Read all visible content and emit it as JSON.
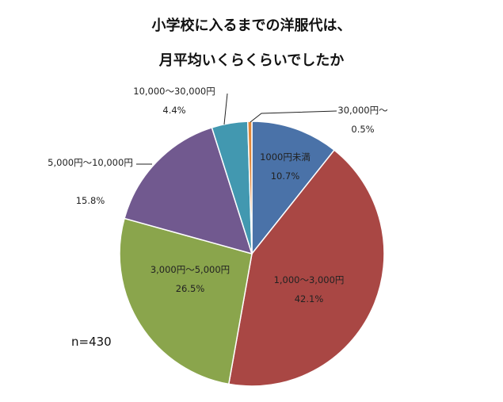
{
  "chart_data": {
    "type": "pie",
    "title": [
      "小学校に入るまでの洋服代は、",
      "月平均いくらくらいでしたか"
    ],
    "categories": [
      "1000円未満",
      "1,000～3,000円",
      "3,000円～5,000円",
      "5,000円～10,000円",
      "10,000～30,000円",
      "30,000円～"
    ],
    "values": [
      10.7,
      42.1,
      26.5,
      15.8,
      4.4,
      0.5
    ],
    "value_labels": [
      "10.7%",
      "42.1%",
      "26.5%",
      "15.8%",
      "4.4%",
      "0.5%"
    ],
    "colors": [
      "#4a72a8",
      "#a94744",
      "#8aa54c",
      "#71598f",
      "#4298b0",
      "#e0873a"
    ],
    "annotation": "n=430"
  }
}
